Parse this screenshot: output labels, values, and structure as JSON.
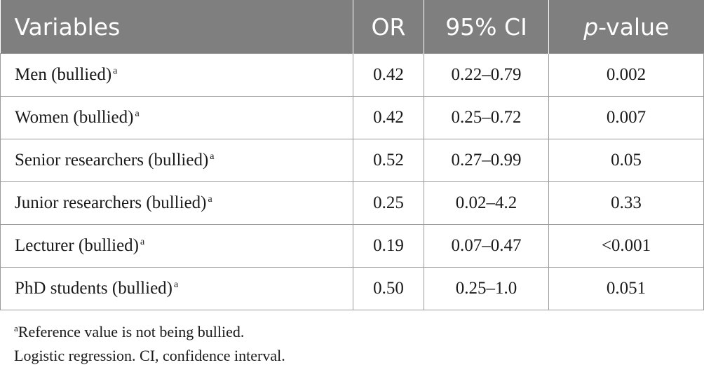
{
  "table": {
    "headers": {
      "variables": "Variables",
      "or": "OR",
      "ci": "95% CI",
      "p_italic": "p",
      "p_rest": "-value"
    },
    "rows": [
      {
        "variable": "Men (bullied)",
        "note": "a",
        "or": "0.42",
        "ci": "0.22–0.79",
        "p": "0.002"
      },
      {
        "variable": "Women (bullied)",
        "note": "a",
        "or": "0.42",
        "ci": "0.25–0.72",
        "p": "0.007"
      },
      {
        "variable": "Senior researchers (bullied)",
        "note": "a",
        "or": "0.52",
        "ci": "0.27–0.99",
        "p": "0.05"
      },
      {
        "variable": "Junior researchers (bullied)",
        "note": "a",
        "or": "0.25",
        "ci": "0.02–4.2",
        "p": "0.33"
      },
      {
        "variable": "Lecturer (bullied)",
        "note": "a",
        "or": "0.19",
        "ci": "0.07–0.47",
        "p": "<0.001"
      },
      {
        "variable": "PhD students (bullied)",
        "note": "a",
        "or": "0.50",
        "ci": "0.25–1.0",
        "p": "0.051"
      }
    ]
  },
  "footnotes": {
    "a_marker": "a",
    "a_text": "Reference value is not being bullied.",
    "line2": "Logistic regression. CI, confidence interval."
  },
  "colors": {
    "header_bg": "#7f7f7f",
    "header_text": "#ffffff",
    "border": "#9a9a9a"
  }
}
